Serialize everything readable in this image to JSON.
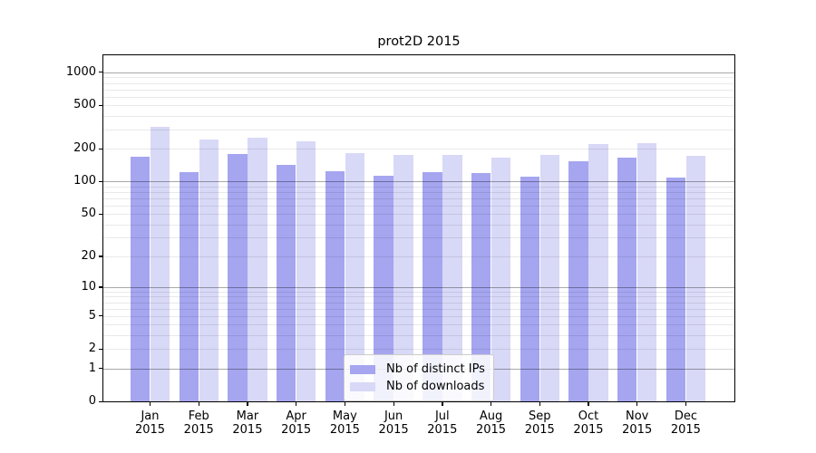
{
  "chart_data": {
    "type": "bar",
    "title": "prot2D 2015",
    "xlabel": "",
    "ylabel": "",
    "categories": [
      "Jan",
      "Feb",
      "Mar",
      "Apr",
      "May",
      "Jun",
      "Jul",
      "Aug",
      "Sep",
      "Oct",
      "Nov",
      "Dec"
    ],
    "x_tick_year": "2015",
    "series": [
      {
        "name": "Nb of distinct IPs",
        "color": "#a5a5f0",
        "values": [
          170,
          121,
          180,
          143,
          125,
          113,
          121,
          120,
          110,
          155,
          167,
          108
        ]
      },
      {
        "name": "Nb of downloads",
        "color": "#d8d8f7",
        "values": [
          320,
          245,
          252,
          235,
          181,
          177,
          174,
          167,
          174,
          222,
          224,
          171
        ]
      }
    ],
    "yscale": "log1p",
    "ylim": [
      0,
      1430
    ],
    "y_major_ticks": [
      1000,
      500,
      200,
      100,
      50,
      20,
      10,
      5,
      2,
      1,
      0
    ],
    "y_major_gridlines": [
      1000,
      100,
      10,
      1
    ],
    "y_minor_gridlines": [
      2,
      3,
      4,
      5,
      6,
      7,
      8,
      9,
      20,
      30,
      40,
      50,
      60,
      70,
      80,
      90,
      200,
      300,
      400,
      500,
      600,
      700,
      800,
      900
    ],
    "grid": true,
    "legend_position": "lower-center"
  },
  "colors": {
    "bar_distinct_ips": "#a5a5f0",
    "bar_downloads": "#d8d8f7",
    "grid_major": "#ababab",
    "grid_minor": "#e9e9e9",
    "axis": "#000000",
    "legend_border": "#cccccc",
    "background": "#ffffff"
  }
}
